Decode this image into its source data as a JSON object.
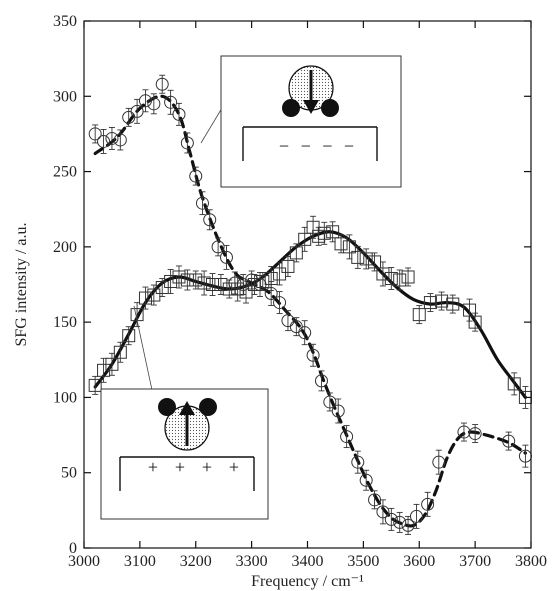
{
  "chart_data": {
    "type": "line",
    "xlabel": "Frequency / cm⁻¹",
    "ylabel": "SFG intensity / a.u.",
    "xlim": [
      3000,
      3800
    ],
    "ylim": [
      0,
      350
    ],
    "xticks": [
      3000,
      3100,
      3200,
      3300,
      3400,
      3500,
      3600,
      3700,
      3800
    ],
    "yticks": [
      0,
      50,
      100,
      150,
      200,
      250,
      300,
      350
    ],
    "grid": false,
    "series": [
      {
        "marker": "circle",
        "line_style": "dashed",
        "color": "#111111",
        "points": [
          [
            3020,
            275
          ],
          [
            3035,
            270
          ],
          [
            3050,
            272
          ],
          [
            3065,
            271
          ],
          [
            3080,
            286
          ],
          [
            3095,
            290
          ],
          [
            3110,
            297
          ],
          [
            3125,
            295
          ],
          [
            3140,
            308
          ],
          [
            3155,
            296
          ],
          [
            3170,
            288
          ],
          [
            3185,
            269
          ],
          [
            3200,
            247
          ],
          [
            3212,
            229
          ],
          [
            3225,
            218
          ],
          [
            3240,
            200
          ],
          [
            3255,
            193
          ],
          [
            3270,
            176
          ],
          [
            3285,
            175
          ],
          [
            3300,
            178
          ],
          [
            3315,
            175
          ],
          [
            3335,
            169
          ],
          [
            3350,
            163
          ],
          [
            3365,
            151
          ],
          [
            3380,
            147
          ],
          [
            3395,
            143
          ],
          [
            3410,
            128
          ],
          [
            3425,
            111
          ],
          [
            3440,
            97
          ],
          [
            3455,
            91
          ],
          [
            3470,
            74
          ],
          [
            3490,
            57
          ],
          [
            3505,
            45
          ],
          [
            3520,
            32
          ],
          [
            3535,
            24
          ],
          [
            3550,
            19
          ],
          [
            3565,
            17
          ],
          [
            3580,
            15
          ],
          [
            3595,
            21
          ],
          [
            3615,
            29
          ],
          [
            3635,
            57
          ],
          [
            3680,
            77
          ],
          [
            3700,
            76
          ],
          [
            3760,
            71
          ],
          [
            3790,
            61
          ]
        ],
        "fit": [
          [
            3020,
            262
          ],
          [
            3060,
            273
          ],
          [
            3100,
            292
          ],
          [
            3140,
            300
          ],
          [
            3170,
            288
          ],
          [
            3190,
            262
          ],
          [
            3210,
            235
          ],
          [
            3240,
            205
          ],
          [
            3270,
            183
          ],
          [
            3300,
            176
          ],
          [
            3330,
            170
          ],
          [
            3360,
            158
          ],
          [
            3390,
            145
          ],
          [
            3410,
            130
          ],
          [
            3430,
            110
          ],
          [
            3450,
            92
          ],
          [
            3470,
            75
          ],
          [
            3490,
            58
          ],
          [
            3510,
            42
          ],
          [
            3530,
            29
          ],
          [
            3550,
            20
          ],
          [
            3570,
            16
          ],
          [
            3590,
            15
          ],
          [
            3610,
            22
          ],
          [
            3630,
            38
          ],
          [
            3650,
            60
          ],
          [
            3670,
            73
          ],
          [
            3690,
            77
          ],
          [
            3720,
            75
          ],
          [
            3760,
            70
          ],
          [
            3790,
            63
          ]
        ]
      },
      {
        "marker": "square",
        "line_style": "solid",
        "color": "#111111",
        "points": [
          [
            3020,
            108
          ],
          [
            3035,
            118
          ],
          [
            3050,
            122
          ],
          [
            3065,
            130
          ],
          [
            3080,
            141
          ],
          [
            3095,
            155
          ],
          [
            3110,
            166
          ],
          [
            3125,
            168
          ],
          [
            3140,
            173
          ],
          [
            3155,
            177
          ],
          [
            3170,
            180
          ],
          [
            3185,
            178
          ],
          [
            3200,
            178
          ],
          [
            3215,
            176
          ],
          [
            3230,
            175
          ],
          [
            3245,
            175
          ],
          [
            3260,
            172
          ],
          [
            3275,
            172
          ],
          [
            3290,
            170
          ],
          [
            3305,
            175
          ],
          [
            3320,
            177
          ],
          [
            3335,
            179
          ],
          [
            3350,
            182
          ],
          [
            3365,
            187
          ],
          [
            3380,
            196
          ],
          [
            3395,
            205
          ],
          [
            3410,
            213
          ],
          [
            3420,
            207
          ],
          [
            3430,
            209
          ],
          [
            3445,
            210
          ],
          [
            3460,
            202
          ],
          [
            3475,
            200
          ],
          [
            3490,
            193
          ],
          [
            3505,
            192
          ],
          [
            3520,
            190
          ],
          [
            3535,
            182
          ],
          [
            3550,
            179
          ],
          [
            3565,
            178
          ],
          [
            3580,
            180
          ],
          [
            3600,
            155
          ],
          [
            3620,
            163
          ],
          [
            3640,
            164
          ],
          [
            3660,
            162
          ],
          [
            3690,
            158
          ],
          [
            3700,
            150
          ],
          [
            3770,
            109
          ],
          [
            3790,
            100
          ]
        ],
        "fit": [
          [
            3020,
            107
          ],
          [
            3050,
            122
          ],
          [
            3080,
            142
          ],
          [
            3110,
            163
          ],
          [
            3140,
            176
          ],
          [
            3170,
            180
          ],
          [
            3200,
            177
          ],
          [
            3230,
            174
          ],
          [
            3260,
            172
          ],
          [
            3290,
            174
          ],
          [
            3320,
            180
          ],
          [
            3350,
            190
          ],
          [
            3380,
            200
          ],
          [
            3410,
            207
          ],
          [
            3440,
            210
          ],
          [
            3470,
            206
          ],
          [
            3500,
            196
          ],
          [
            3530,
            184
          ],
          [
            3560,
            173
          ],
          [
            3590,
            165
          ],
          [
            3620,
            162
          ],
          [
            3650,
            163
          ],
          [
            3680,
            160
          ],
          [
            3710,
            145
          ],
          [
            3740,
            125
          ],
          [
            3770,
            110
          ],
          [
            3790,
            100
          ]
        ]
      }
    ],
    "insets": [
      {
        "position": "top-right",
        "charge_sign": "−",
        "charge_count": 4,
        "dipole": "down"
      },
      {
        "position": "bottom-left",
        "charge_sign": "+",
        "charge_count": 4,
        "dipole": "up"
      }
    ]
  }
}
